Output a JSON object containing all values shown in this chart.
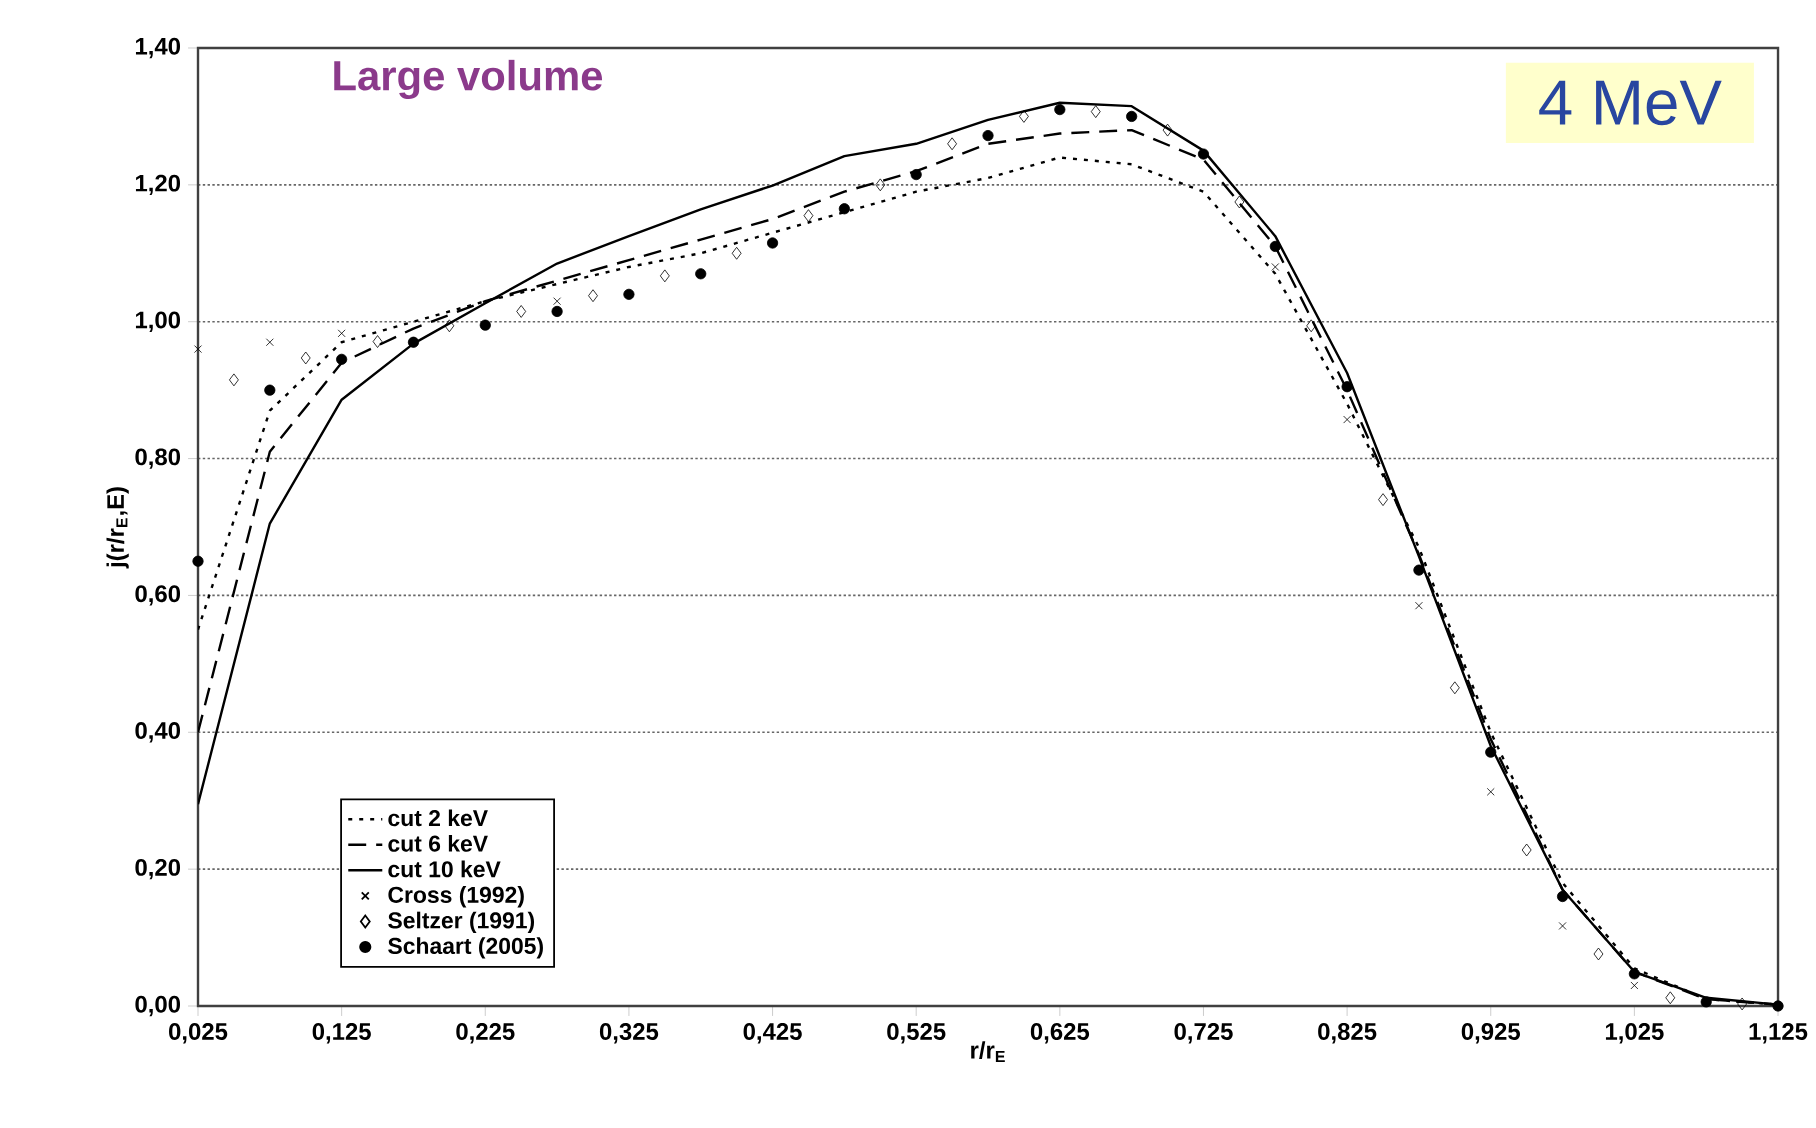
{
  "chart_data": {
    "type": "line",
    "xlabel": "r/r$_{E}$",
    "ylabel": "j(r/r$_{E}$,E)",
    "annotations": [
      "Large volume",
      "4 MeV"
    ],
    "xlim": [
      0.025,
      1.125
    ],
    "xticks": [
      {
        "value": 0.025,
        "label": "0,025"
      },
      {
        "value": 0.125,
        "label": "0,125"
      },
      {
        "value": 0.225,
        "label": "0,225"
      },
      {
        "value": 0.325,
        "label": "0,325"
      },
      {
        "value": 0.425,
        "label": "0,425"
      },
      {
        "value": 0.525,
        "label": "0,525"
      },
      {
        "value": 0.625,
        "label": "0,625"
      },
      {
        "value": 0.725,
        "label": "0,725"
      },
      {
        "value": 0.825,
        "label": "0,825"
      },
      {
        "value": 0.925,
        "label": "0,925"
      },
      {
        "value": 1.025,
        "label": "1,025"
      },
      {
        "value": 1.125,
        "label": "1,125"
      }
    ],
    "ylim": [
      0,
      1.4
    ],
    "yticks": [
      {
        "value": 0,
        "label": "0,00"
      },
      {
        "value": 0.2,
        "label": "0,20"
      },
      {
        "value": 0.4,
        "label": "0,40"
      },
      {
        "value": 0.6,
        "label": "0,60"
      },
      {
        "value": 0.8,
        "label": "0,80"
      },
      {
        "value": 1.0,
        "label": "1,00"
      },
      {
        "value": 1.2,
        "label": "1,20"
      },
      {
        "value": 1.4,
        "label": "1,40"
      }
    ],
    "grid": "y",
    "legend": "bottom left",
    "series": [
      {
        "name": "cut 2 keV",
        "line_style": "dotted",
        "marker": "none",
        "color": "#000000",
        "x": [
          0.025,
          0.075,
          0.125,
          0.175,
          0.225,
          0.275,
          0.325,
          0.375,
          0.425,
          0.475,
          0.525,
          0.575,
          0.625,
          0.675,
          0.725,
          0.775,
          0.825,
          0.875,
          0.925,
          0.975,
          1.025,
          1.075,
          1.125
        ],
        "values": [
          0.55,
          0.87,
          0.97,
          1.0,
          1.03,
          1.055,
          1.08,
          1.1,
          1.13,
          1.16,
          1.19,
          1.21,
          1.24,
          1.23,
          1.19,
          1.07,
          0.88,
          0.67,
          0.4,
          0.18,
          0.055,
          0.01,
          0.002
        ]
      },
      {
        "name": "cut 6 keV",
        "line_style": "dashed",
        "marker": "none",
        "color": "#000000",
        "x": [
          0.025,
          0.075,
          0.125,
          0.175,
          0.225,
          0.275,
          0.325,
          0.375,
          0.425,
          0.475,
          0.525,
          0.575,
          0.625,
          0.675,
          0.725,
          0.775,
          0.825,
          0.875,
          0.925,
          0.975,
          1.025,
          1.075,
          1.125
        ],
        "values": [
          0.4,
          0.81,
          0.94,
          0.99,
          1.03,
          1.06,
          1.09,
          1.12,
          1.15,
          1.19,
          1.22,
          1.26,
          1.275,
          1.28,
          1.237,
          1.11,
          0.9,
          0.66,
          0.39,
          0.17,
          0.05,
          0.01,
          0.002
        ]
      },
      {
        "name": "cut 10 keV",
        "line_style": "solid",
        "marker": "none",
        "color": "#000000",
        "x": [
          0.025,
          0.075,
          0.125,
          0.175,
          0.225,
          0.275,
          0.325,
          0.375,
          0.425,
          0.475,
          0.525,
          0.575,
          0.625,
          0.675,
          0.725,
          0.775,
          0.825,
          0.875,
          0.925,
          0.975,
          1.025,
          1.075,
          1.125
        ],
        "values": [
          0.295,
          0.705,
          0.886,
          0.968,
          1.027,
          1.085,
          1.125,
          1.164,
          1.199,
          1.242,
          1.26,
          1.295,
          1.32,
          1.315,
          1.25,
          1.125,
          0.925,
          0.657,
          0.38,
          0.17,
          0.05,
          0.012,
          0.002
        ]
      },
      {
        "name": "Cross (1992)",
        "type": "scatter",
        "marker": "cross",
        "color": "#000000",
        "x": [
          0.025,
          0.075,
          0.125,
          0.275,
          0.775,
          0.825,
          0.875,
          0.925,
          0.975,
          1.025
        ],
        "values": [
          0.96,
          0.97,
          0.983,
          1.03,
          1.08,
          0.857,
          0.585,
          0.313,
          0.117,
          0.03
        ]
      },
      {
        "name": "Seltzer (1991)",
        "type": "scatter",
        "marker": "diamond",
        "color": "#000000",
        "x": [
          0.05,
          0.1,
          0.15,
          0.2,
          0.25,
          0.3,
          0.35,
          0.4,
          0.45,
          0.5,
          0.55,
          0.6,
          0.65,
          0.7,
          0.75,
          0.8,
          0.85,
          0.9,
          0.95,
          1.0,
          1.05,
          1.1
        ],
        "values": [
          0.915,
          0.947,
          0.971,
          0.994,
          1.015,
          1.038,
          1.067,
          1.1,
          1.155,
          1.2,
          1.26,
          1.3,
          1.307,
          1.28,
          1.175,
          0.994,
          0.74,
          0.465,
          0.228,
          0.076,
          0.012,
          0.003
        ]
      },
      {
        "name": "Schaart (2005)",
        "type": "scatter",
        "marker": "circle",
        "color": "#000000",
        "x": [
          0.025,
          0.075,
          0.125,
          0.175,
          0.225,
          0.275,
          0.325,
          0.375,
          0.425,
          0.475,
          0.525,
          0.575,
          0.625,
          0.675,
          0.725,
          0.775,
          0.825,
          0.875,
          0.925,
          0.975,
          1.025,
          1.075,
          1.125
        ],
        "values": [
          0.65,
          0.9,
          0.945,
          0.97,
          0.995,
          1.015,
          1.04,
          1.07,
          1.115,
          1.165,
          1.215,
          1.272,
          1.31,
          1.3,
          1.245,
          1.11,
          0.905,
          0.637,
          0.371,
          0.16,
          0.047,
          0.006,
          0.0
        ]
      }
    ]
  }
}
